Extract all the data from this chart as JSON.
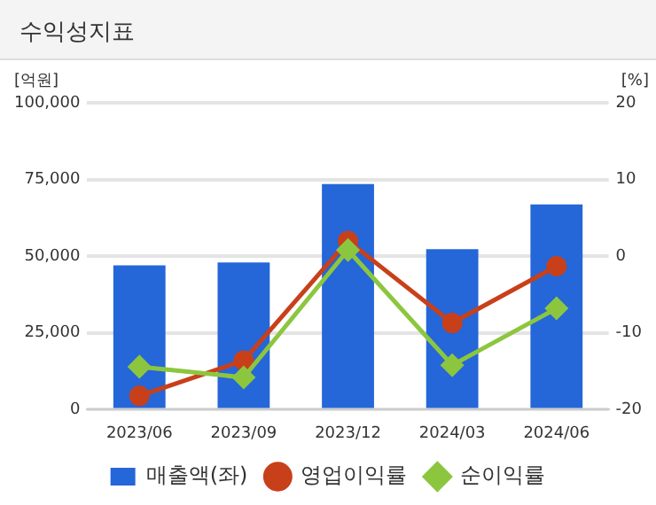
{
  "chart_data": {
    "type": "bar",
    "title": "수익성지표",
    "ylabel": "[억원]",
    "y2label": "[%]",
    "categories": [
      "2023/06",
      "2023/09",
      "2023/12",
      "2024/03",
      "2024/06"
    ],
    "series": [
      {
        "name": "매출액(좌)",
        "color": "#2566d8",
        "values": [
          47000,
          48000,
          73500,
          52300,
          66900
        ]
      },
      {
        "name": "영업이익률",
        "type": "line",
        "axis": "y2",
        "marker": "circle",
        "color": "#c8401a",
        "values": [
          -18.2,
          -13.6,
          2.0,
          -8.7,
          -1.3
        ]
      },
      {
        "name": "순이익률",
        "type": "line",
        "axis": "y2",
        "marker": "diamond",
        "color": "#8cc63f",
        "values": [
          -14.4,
          -15.8,
          0.8,
          -14.2,
          -6.8
        ]
      }
    ],
    "ylim": [
      0,
      100000
    ],
    "yticks": [
      0,
      {
        "value": 25000,
        "label": "25,000"
      },
      {
        "value": 50000,
        "label": "50,000"
      },
      {
        "value": 75000,
        "label": "75,000"
      },
      {
        "value": 100000,
        "label": "100,000"
      }
    ],
    "y2lim": [
      -20,
      20
    ],
    "y2ticks": [
      -20,
      -10,
      0,
      10,
      20
    ],
    "grid": "y",
    "legend": "bottom"
  }
}
